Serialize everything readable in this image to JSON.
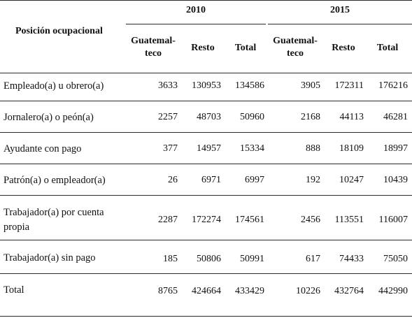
{
  "header": {
    "row_label": "Posición ocupacional",
    "years": [
      "2010",
      "2015"
    ],
    "sub_columns": [
      "Guatemal-\nteco",
      "Resto",
      "Total"
    ],
    "guatemalteco_line1": "Guatemal-",
    "guatemalteco_line2": "teco",
    "resto": "Resto",
    "total": "Total"
  },
  "rows": [
    {
      "label": "Empleado(a) u obrero(a)",
      "values": [
        "3633",
        "130953",
        "134586",
        "3905",
        "172311",
        "176216"
      ]
    },
    {
      "label": "Jornalero(a) o peón(a)",
      "values": [
        "2257",
        "48703",
        "50960",
        "2168",
        "44113",
        "46281"
      ]
    },
    {
      "label": "Ayudante con pago",
      "values": [
        "377",
        "14957",
        "15334",
        "888",
        "18109",
        "18997"
      ]
    },
    {
      "label": "Patrón(a) o empleador(a)",
      "values": [
        "26",
        "6971",
        "6997",
        "192",
        "10247",
        "10439"
      ]
    },
    {
      "label_line1": "Trabajador(a) por cuenta",
      "label_line2": "propia",
      "values": [
        "2287",
        "172274",
        "174561",
        "2456",
        "113551",
        "116007"
      ]
    },
    {
      "label": "Trabajador(a) sin pago",
      "values": [
        "185",
        "50806",
        "50991",
        "617",
        "74433",
        "75050"
      ]
    },
    {
      "label": "Total",
      "values": [
        "8765",
        "424664",
        "433429",
        "10226",
        "432764",
        "442990"
      ]
    }
  ]
}
